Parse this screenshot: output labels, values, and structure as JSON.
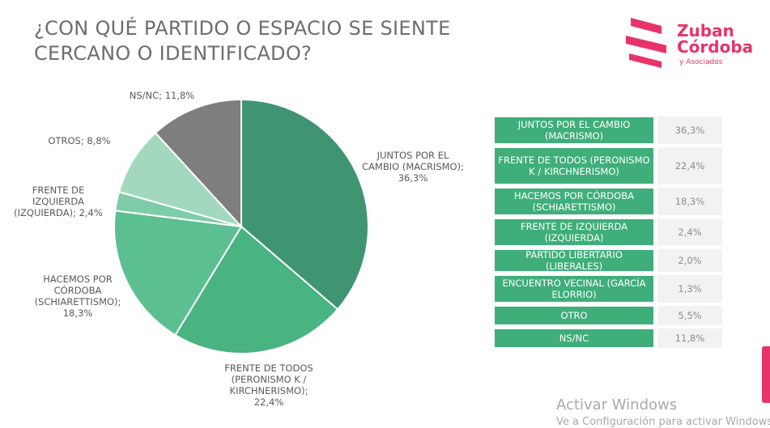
{
  "title": {
    "line1": "¿CON QUÉ PARTIDO O ESPACIO SE SIENTE",
    "line2": "CERCANO O IDENTIFICADO?"
  },
  "logo": {
    "line1": "Zuban",
    "line2": "Córdoba",
    "sub": "y Asociados",
    "color": "#e8336a"
  },
  "chart_data": {
    "type": "pie",
    "slices": [
      {
        "label_lines": [
          "JUNTOS POR EL",
          "CAMBIO (MACRISMO);",
          "36,3%"
        ],
        "value": 36.3,
        "color": "#3f9572"
      },
      {
        "label_lines": [
          "FRENTE DE TODOS",
          "(PERONISMO K /",
          "KIRCHNERISMO);",
          "22,4%"
        ],
        "value": 22.4,
        "color": "#49b381"
      },
      {
        "label_lines": [
          "HACEMOS POR",
          "CÓRDOBA",
          "(SCHIARETTISMO);",
          "18,3%"
        ],
        "value": 18.3,
        "color": "#5bbf92"
      },
      {
        "label_lines": [
          "FRENTE DE",
          "IZQUIERDA",
          "(IZQUIERDA); 2,4%"
        ],
        "value": 2.4,
        "color": "#7fcda8"
      },
      {
        "label_lines": [
          "OTROS; 8,8%"
        ],
        "value": 8.8,
        "color": "#a2d9be"
      },
      {
        "label_lines": [
          "NS/NC; 11,8%"
        ],
        "value": 11.8,
        "color": "#7e7e7e"
      }
    ]
  },
  "table": {
    "rows": [
      {
        "name": "JUNTOS POR EL CAMBIO (MACRISMO)",
        "value": "36,3%"
      },
      {
        "name": "FRENTE DE TODOS (PERONISMO K / KIRCHNERISMO)",
        "value": "22,4%"
      },
      {
        "name": "HACEMOS POR CÓRDOBA (SCHIARETTISMO)",
        "value": "18,3%"
      },
      {
        "name": "FRENTE DE IZQUIERDA (IZQUIERDA)",
        "value": "2,4%"
      },
      {
        "name": "PARTIDO LIBERTARIO (LIBERALES)",
        "value": "2,0%"
      },
      {
        "name": "ENCUENTRO VECINAL (GARCÍA ELORRIO)",
        "value": "1,3%"
      },
      {
        "name": "OTRO",
        "value": "5,5%"
      },
      {
        "name": "NS/NC",
        "value": "11,8%"
      }
    ]
  },
  "watermark": {
    "line1": "Activar Windows",
    "line2": "Ve a Configuración para activar Windows"
  }
}
